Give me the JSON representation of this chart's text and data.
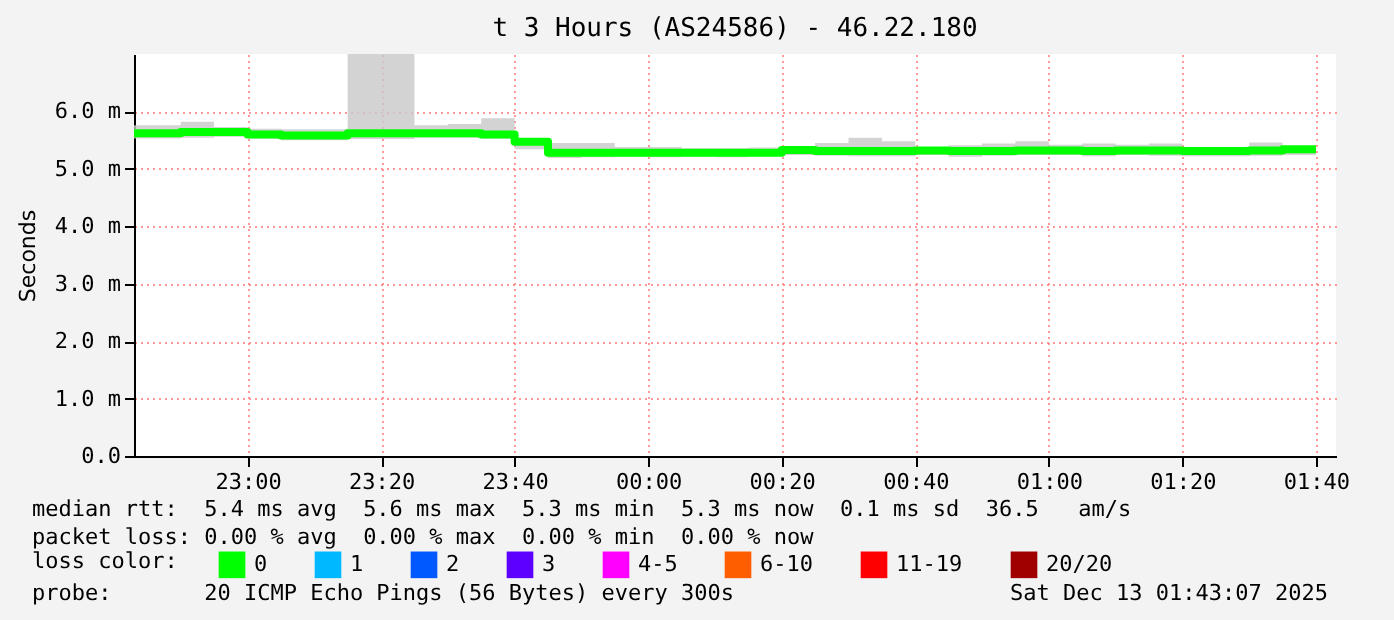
{
  "chart_data": {
    "type": "step",
    "title": "t 3 Hours (AS24586) - 46.22.180",
    "ylabel": "Seconds",
    "x": [
      "2025-12-12T22:43",
      "2025-12-12T22:50",
      "2025-12-12T22:55",
      "2025-12-12T23:00",
      "2025-12-12T23:05",
      "2025-12-12T23:10",
      "2025-12-12T23:15",
      "2025-12-12T23:20",
      "2025-12-12T23:25",
      "2025-12-12T23:30",
      "2025-12-12T23:35",
      "2025-12-12T23:40",
      "2025-12-12T23:45",
      "2025-12-12T23:50",
      "2025-12-12T23:55",
      "2025-12-13T00:00",
      "2025-12-13T00:05",
      "2025-12-13T00:10",
      "2025-12-13T00:15",
      "2025-12-13T00:20",
      "2025-12-13T00:25",
      "2025-12-13T00:30",
      "2025-12-13T00:35",
      "2025-12-13T00:40",
      "2025-12-13T00:45",
      "2025-12-13T00:50",
      "2025-12-13T00:55",
      "2025-12-13T01:00",
      "2025-12-13T01:05",
      "2025-12-13T01:10",
      "2025-12-13T01:15",
      "2025-12-13T01:20",
      "2025-12-13T01:25",
      "2025-12-13T01:30",
      "2025-12-13T01:35",
      "2025-12-13T01:40"
    ],
    "series": [
      {
        "name": "0",
        "color": "#00ff00",
        "values": [
          5.62,
          5.64,
          5.64,
          5.6,
          5.58,
          5.58,
          5.62,
          5.62,
          5.62,
          5.62,
          5.6,
          5.47,
          5.28,
          5.28,
          5.28,
          5.28,
          5.28,
          5.28,
          5.28,
          5.33,
          5.31,
          5.31,
          5.31,
          5.32,
          5.31,
          5.31,
          5.32,
          5.32,
          5.31,
          5.32,
          5.32,
          5.31,
          5.31,
          5.32,
          5.34,
          5.34
        ],
        "lower": [
          5.53,
          5.54,
          5.56,
          5.53,
          5.5,
          5.5,
          5.52,
          5.52,
          5.54,
          5.54,
          5.53,
          5.34,
          5.19,
          5.2,
          5.21,
          5.2,
          5.21,
          5.2,
          5.22,
          5.24,
          5.23,
          5.22,
          5.22,
          5.24,
          5.21,
          5.23,
          5.24,
          5.24,
          5.22,
          5.24,
          5.23,
          5.22,
          5.22,
          5.23,
          5.24,
          5.24
        ],
        "upper": [
          5.76,
          5.82,
          5.73,
          5.7,
          5.69,
          5.69,
          7.0,
          7.0,
          5.76,
          5.78,
          5.88,
          5.52,
          5.45,
          5.45,
          5.38,
          5.38,
          5.36,
          5.36,
          5.37,
          5.38,
          5.45,
          5.54,
          5.48,
          5.38,
          5.41,
          5.44,
          5.48,
          5.42,
          5.44,
          5.42,
          5.44,
          5.38,
          5.36,
          5.46,
          5.38,
          5.38
        ]
      },
      {
        "name": "1",
        "color": "#00b8ff",
        "values": [
          null,
          null,
          null,
          null,
          null,
          null,
          null,
          null,
          null,
          null,
          null,
          null,
          null,
          null,
          null,
          null,
          null,
          null,
          null,
          null,
          null,
          null,
          null,
          null,
          null,
          null,
          null,
          null,
          null,
          null,
          null,
          null,
          null,
          null,
          null,
          null
        ]
      },
      {
        "name": "2",
        "color": "#0059ff",
        "values": [
          null,
          null,
          null,
          null,
          null,
          null,
          null,
          null,
          null,
          null,
          null,
          null,
          null,
          null,
          null,
          null,
          null,
          null,
          null,
          null,
          null,
          null,
          null,
          null,
          null,
          null,
          null,
          null,
          null,
          null,
          null,
          null,
          null,
          null,
          null,
          null
        ]
      },
      {
        "name": "3",
        "color": "#5e00ff",
        "values": [
          null,
          null,
          null,
          null,
          null,
          null,
          null,
          null,
          null,
          null,
          null,
          null,
          null,
          null,
          null,
          null,
          null,
          null,
          null,
          null,
          null,
          null,
          null,
          null,
          null,
          null,
          null,
          null,
          null,
          null,
          null,
          null,
          null,
          null,
          null,
          null
        ]
      },
      {
        "name": "4-5",
        "color": "#ff00ff",
        "values": [
          null,
          null,
          null,
          null,
          null,
          null,
          null,
          null,
          null,
          null,
          null,
          null,
          null,
          null,
          null,
          null,
          null,
          null,
          null,
          null,
          null,
          null,
          null,
          null,
          null,
          null,
          null,
          null,
          null,
          null,
          null,
          null,
          null,
          null,
          null,
          null
        ]
      },
      {
        "name": "6-10",
        "color": "#ff5e00",
        "values": [
          null,
          null,
          null,
          null,
          null,
          null,
          null,
          null,
          null,
          null,
          null,
          null,
          null,
          null,
          null,
          null,
          null,
          null,
          null,
          null,
          null,
          null,
          null,
          null,
          null,
          null,
          null,
          null,
          null,
          null,
          null,
          null,
          null,
          null,
          null,
          null
        ]
      },
      {
        "name": "11-19",
        "color": "#ff0000",
        "values": [
          null,
          null,
          null,
          null,
          null,
          null,
          null,
          null,
          null,
          null,
          null,
          null,
          null,
          null,
          null,
          null,
          null,
          null,
          null,
          null,
          null,
          null,
          null,
          null,
          null,
          null,
          null,
          null,
          null,
          null,
          null,
          null,
          null,
          null,
          null,
          null
        ]
      },
      {
        "name": "20/20",
        "color": "#a10000",
        "values": [
          null,
          null,
          null,
          null,
          null,
          null,
          null,
          null,
          null,
          null,
          null,
          null,
          null,
          null,
          null,
          null,
          null,
          null,
          null,
          null,
          null,
          null,
          null,
          null,
          null,
          null,
          null,
          null,
          null,
          null,
          null,
          null,
          null,
          null,
          null,
          null
        ]
      }
    ],
    "legend": "bottom",
    "legend_title": "loss color:",
    "xlim": [
      "2025-12-12T22:43",
      "2025-12-13T01:43"
    ],
    "xticks": [
      {
        "value": "2025-12-12T23:00",
        "label": "23:00"
      },
      {
        "value": "2025-12-12T23:20",
        "label": "23:20"
      },
      {
        "value": "2025-12-12T23:40",
        "label": "23:40"
      },
      {
        "value": "2025-12-13T00:00",
        "label": "00:00"
      },
      {
        "value": "2025-12-13T00:20",
        "label": "00:20"
      },
      {
        "value": "2025-12-13T00:40",
        "label": "00:40"
      },
      {
        "value": "2025-12-13T01:00",
        "label": "01:00"
      },
      {
        "value": "2025-12-13T01:20",
        "label": "01:20"
      },
      {
        "value": "2025-12-13T01:40",
        "label": "01:40"
      }
    ],
    "ylim": [
      0,
      7
    ],
    "yticks": [
      {
        "value": 0,
        "label": "0.0"
      },
      {
        "value": 1,
        "label": "1.0 m"
      },
      {
        "value": 2,
        "label": "2.0 m"
      },
      {
        "value": 3,
        "label": "3.0 m"
      },
      {
        "value": 4,
        "label": "4.0 m"
      },
      {
        "value": 5,
        "label": "5.0 m"
      },
      {
        "value": 6,
        "label": "6.0 m"
      }
    ],
    "grid": true,
    "annotations": [
      "median rtt:  5.4 ms avg  5.6 ms max  5.3 ms min  5.3 ms now  0.1 ms sd  36.5   am/s",
      "packet loss: 0.00 % avg  0.00 % max  0.00 % min  0.00 % now",
      "probe:       20 ICMP Echo Pings (56 Bytes) every 300s",
      "Sat Dec 13 01:43:07 2025"
    ]
  }
}
